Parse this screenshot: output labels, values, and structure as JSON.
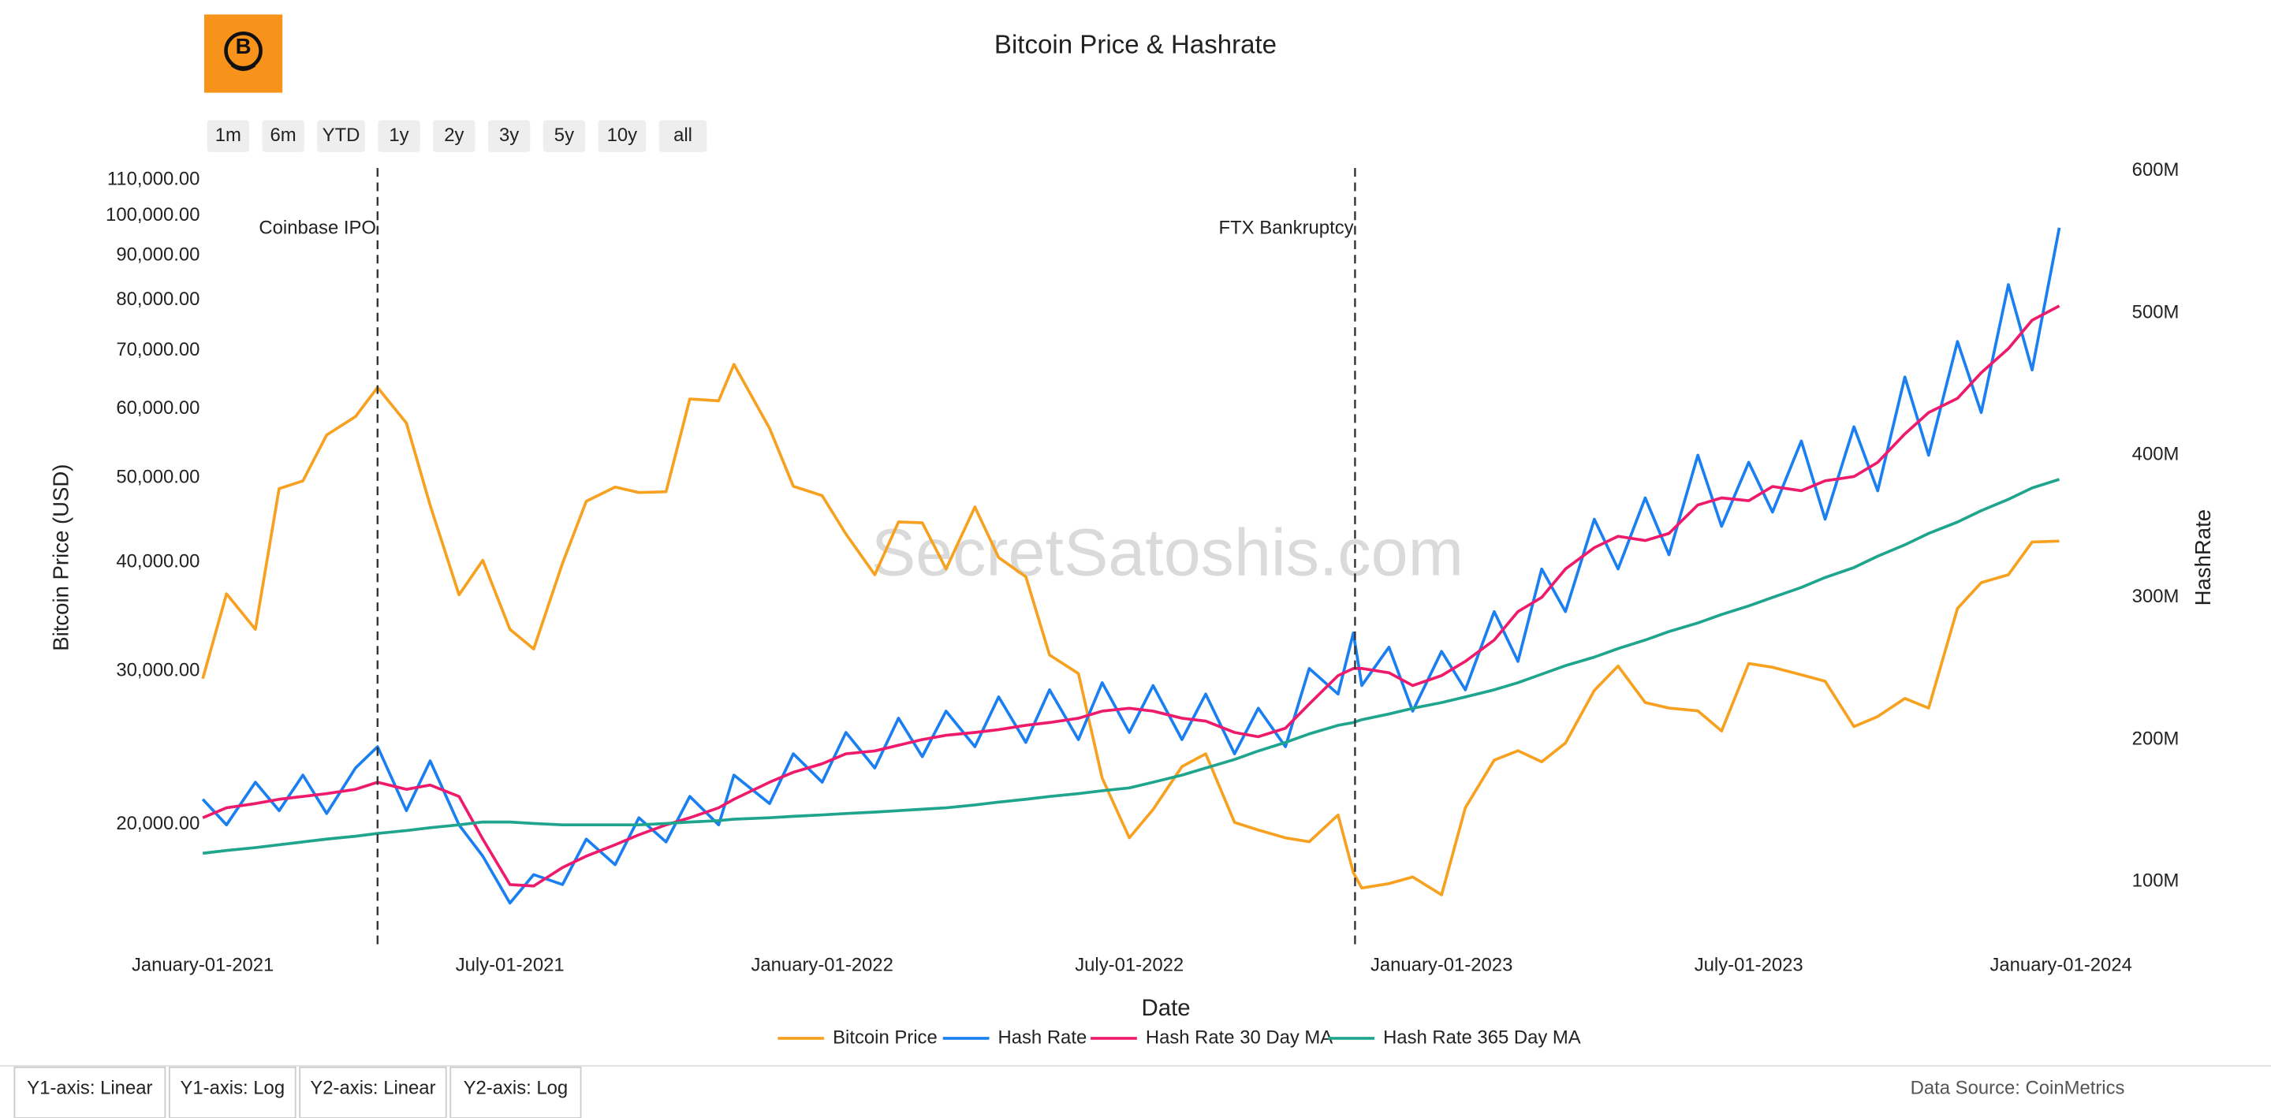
{
  "chart_data": {
    "type": "line",
    "title": "Bitcoin Price & Hashrate",
    "watermark": "SecretSatoshis.com",
    "source": "Data Source: CoinMetrics",
    "range_buttons": [
      "1m",
      "6m",
      "YTD",
      "1y",
      "2y",
      "3y",
      "5y",
      "10y",
      "all"
    ],
    "axis_buttons": [
      "Y1-axis: Linear",
      "Y1-axis: Log",
      "Y2-axis: Linear",
      "Y2-axis: Log"
    ],
    "xlabel": "Date",
    "ylabel": "Bitcoin Price (USD)",
    "y2label": "HashRate",
    "ylog": true,
    "legend": "bottom",
    "xlim": [
      "2021-01-01",
      "2024-01-01"
    ],
    "xticks": [
      {
        "value": "2021-01-01",
        "label": "January-01-2021"
      },
      {
        "value": "2021-07-01",
        "label": "July-01-2021"
      },
      {
        "value": "2022-01-01",
        "label": "January-01-2022"
      },
      {
        "value": "2022-07-01",
        "label": "July-01-2022"
      },
      {
        "value": "2023-01-01",
        "label": "January-01-2023"
      },
      {
        "value": "2023-07-01",
        "label": "July-01-2023"
      },
      {
        "value": "2024-01-01",
        "label": "January-01-2024"
      }
    ],
    "ylim": [
      14400,
      112600
    ],
    "yticks": [
      {
        "value": 20000,
        "label": "20,000.00"
      },
      {
        "value": 30000,
        "label": "30,000.00"
      },
      {
        "value": 40000,
        "label": "40,000.00"
      },
      {
        "value": 50000,
        "label": "50,000.00"
      },
      {
        "value": 60000,
        "label": "60,000.00"
      },
      {
        "value": 70000,
        "label": "70,000.00"
      },
      {
        "value": 80000,
        "label": "80,000.00"
      },
      {
        "value": 90000,
        "label": "90,000.00"
      },
      {
        "value": 100000,
        "label": "100,000.00"
      },
      {
        "value": 110000,
        "label": "110,000.00"
      }
    ],
    "y2lim": [
      53000000,
      600000000
    ],
    "y2ticks": [
      {
        "value": 100000000,
        "label": "100M"
      },
      {
        "value": 200000000,
        "label": "200M"
      },
      {
        "value": 300000000,
        "label": "300M"
      },
      {
        "value": 400000000,
        "label": "400M"
      },
      {
        "value": 500000000,
        "label": "500M"
      },
      {
        "value": 600000000,
        "label": "600M"
      }
    ],
    "annotations": [
      {
        "x": "2021-04-14",
        "text": "Coinbase IPO"
      },
      {
        "x": "2022-11-11",
        "text": "FTX Bankruptcy"
      }
    ],
    "x": [
      "2021-01-01",
      "2021-01-15",
      "2021-02-01",
      "2021-02-15",
      "2021-03-01",
      "2021-03-15",
      "2021-04-01",
      "2021-04-14",
      "2021-05-01",
      "2021-05-15",
      "2021-06-01",
      "2021-06-15",
      "2021-07-01",
      "2021-07-15",
      "2021-08-01",
      "2021-08-15",
      "2021-09-01",
      "2021-09-15",
      "2021-10-01",
      "2021-10-15",
      "2021-11-01",
      "2021-11-10",
      "2021-12-01",
      "2021-12-15",
      "2022-01-01",
      "2022-01-15",
      "2022-02-01",
      "2022-02-15",
      "2022-03-01",
      "2022-03-15",
      "2022-04-01",
      "2022-04-15",
      "2022-05-01",
      "2022-05-15",
      "2022-06-01",
      "2022-06-15",
      "2022-07-01",
      "2022-07-15",
      "2022-08-01",
      "2022-08-15",
      "2022-09-01",
      "2022-09-15",
      "2022-10-01",
      "2022-10-15",
      "2022-11-01",
      "2022-11-10",
      "2022-11-15",
      "2022-12-01",
      "2022-12-15",
      "2023-01-01",
      "2023-01-15",
      "2023-02-01",
      "2023-02-15",
      "2023-03-01",
      "2023-03-15",
      "2023-04-01",
      "2023-04-15",
      "2023-05-01",
      "2023-05-15",
      "2023-06-01",
      "2023-06-15",
      "2023-07-01",
      "2023-07-15",
      "2023-08-01",
      "2023-08-15",
      "2023-09-01",
      "2023-09-15",
      "2023-10-01",
      "2023-10-15",
      "2023-11-01",
      "2023-11-15",
      "2023-12-01",
      "2023-12-15",
      "2023-12-31"
    ],
    "series": [
      {
        "name": "Bitcoin Price",
        "color": "#f7a120",
        "axis": "y",
        "values": [
          29400,
          36800,
          33500,
          48600,
          49600,
          56000,
          58800,
          63500,
          57800,
          46500,
          36700,
          40200,
          33500,
          31800,
          39900,
          47000,
          48800,
          48100,
          48200,
          61600,
          61300,
          67500,
          57000,
          48900,
          47700,
          43100,
          38700,
          44500,
          44400,
          39300,
          46300,
          40500,
          38500,
          31300,
          29800,
          22600,
          19300,
          20800,
          23300,
          24100,
          20100,
          19700,
          19300,
          19100,
          20500,
          17600,
          16900,
          17100,
          17400,
          16600,
          20900,
          23700,
          24300,
          23600,
          24800,
          28500,
          30400,
          27600,
          27200,
          27000,
          25600,
          30600,
          30300,
          29700,
          29200,
          25900,
          26600,
          27900,
          27200,
          35400,
          37900,
          38700,
          42200,
          42300
        ]
      },
      {
        "name": "Hash Rate",
        "color": "#1a7ff0",
        "axis": "y2",
        "values": [
          158000000,
          140000000,
          170000000,
          150000000,
          175000000,
          148000000,
          180000000,
          195000000,
          150000000,
          185000000,
          140000000,
          118000000,
          85000000,
          105000000,
          98000000,
          130000000,
          112000000,
          145000000,
          128000000,
          160000000,
          140000000,
          175000000,
          155000000,
          190000000,
          170000000,
          205000000,
          180000000,
          215000000,
          188000000,
          220000000,
          195000000,
          230000000,
          198000000,
          235000000,
          200000000,
          240000000,
          205000000,
          238000000,
          200000000,
          232000000,
          190000000,
          222000000,
          195000000,
          250000000,
          232000000,
          275000000,
          238000000,
          265000000,
          220000000,
          262000000,
          235000000,
          290000000,
          255000000,
          320000000,
          290000000,
          355000000,
          320000000,
          370000000,
          330000000,
          400000000,
          350000000,
          395000000,
          360000000,
          410000000,
          355000000,
          420000000,
          375000000,
          455000000,
          400000000,
          480000000,
          430000000,
          520000000,
          460000000,
          560000000
        ]
      },
      {
        "name": "Hash Rate 30 Day MA",
        "color": "#ee1b6c",
        "axis": "y2",
        "values": [
          145000000,
          152000000,
          155000000,
          158000000,
          160000000,
          162000000,
          165000000,
          170000000,
          165000000,
          168000000,
          160000000,
          130000000,
          98000000,
          97000000,
          110000000,
          118000000,
          126000000,
          133000000,
          140000000,
          145000000,
          152000000,
          158000000,
          170000000,
          177000000,
          183000000,
          190000000,
          192000000,
          196000000,
          200000000,
          203000000,
          205000000,
          207000000,
          210000000,
          212000000,
          215000000,
          220000000,
          222000000,
          220000000,
          215000000,
          213000000,
          205000000,
          202000000,
          208000000,
          225000000,
          245000000,
          250000000,
          250000000,
          247000000,
          238000000,
          245000000,
          255000000,
          270000000,
          290000000,
          300000000,
          320000000,
          335000000,
          343000000,
          340000000,
          345000000,
          365000000,
          370000000,
          368000000,
          378000000,
          375000000,
          382000000,
          385000000,
          395000000,
          415000000,
          430000000,
          440000000,
          458000000,
          475000000,
          495000000,
          505000000
        ]
      },
      {
        "name": "Hash Rate 365 Day MA",
        "color": "#1fa58d",
        "axis": "y2",
        "values": [
          120000000,
          122000000,
          124000000,
          126000000,
          128000000,
          130000000,
          132000000,
          134000000,
          136000000,
          138000000,
          140000000,
          142000000,
          142000000,
          141000000,
          140000000,
          140000000,
          140000000,
          140000000,
          141000000,
          142000000,
          143000000,
          144000000,
          145000000,
          146000000,
          147000000,
          148000000,
          149000000,
          150000000,
          151000000,
          152000000,
          154000000,
          156000000,
          158000000,
          160000000,
          162000000,
          164000000,
          166000000,
          170000000,
          175000000,
          180000000,
          186000000,
          192000000,
          198000000,
          204000000,
          210000000,
          212000000,
          214000000,
          218000000,
          222000000,
          226000000,
          230000000,
          235000000,
          240000000,
          246000000,
          252000000,
          258000000,
          264000000,
          270000000,
          276000000,
          282000000,
          288000000,
          294000000,
          300000000,
          307000000,
          314000000,
          321000000,
          329000000,
          337000000,
          345000000,
          353000000,
          361000000,
          369000000,
          377000000,
          383000000
        ]
      }
    ]
  }
}
